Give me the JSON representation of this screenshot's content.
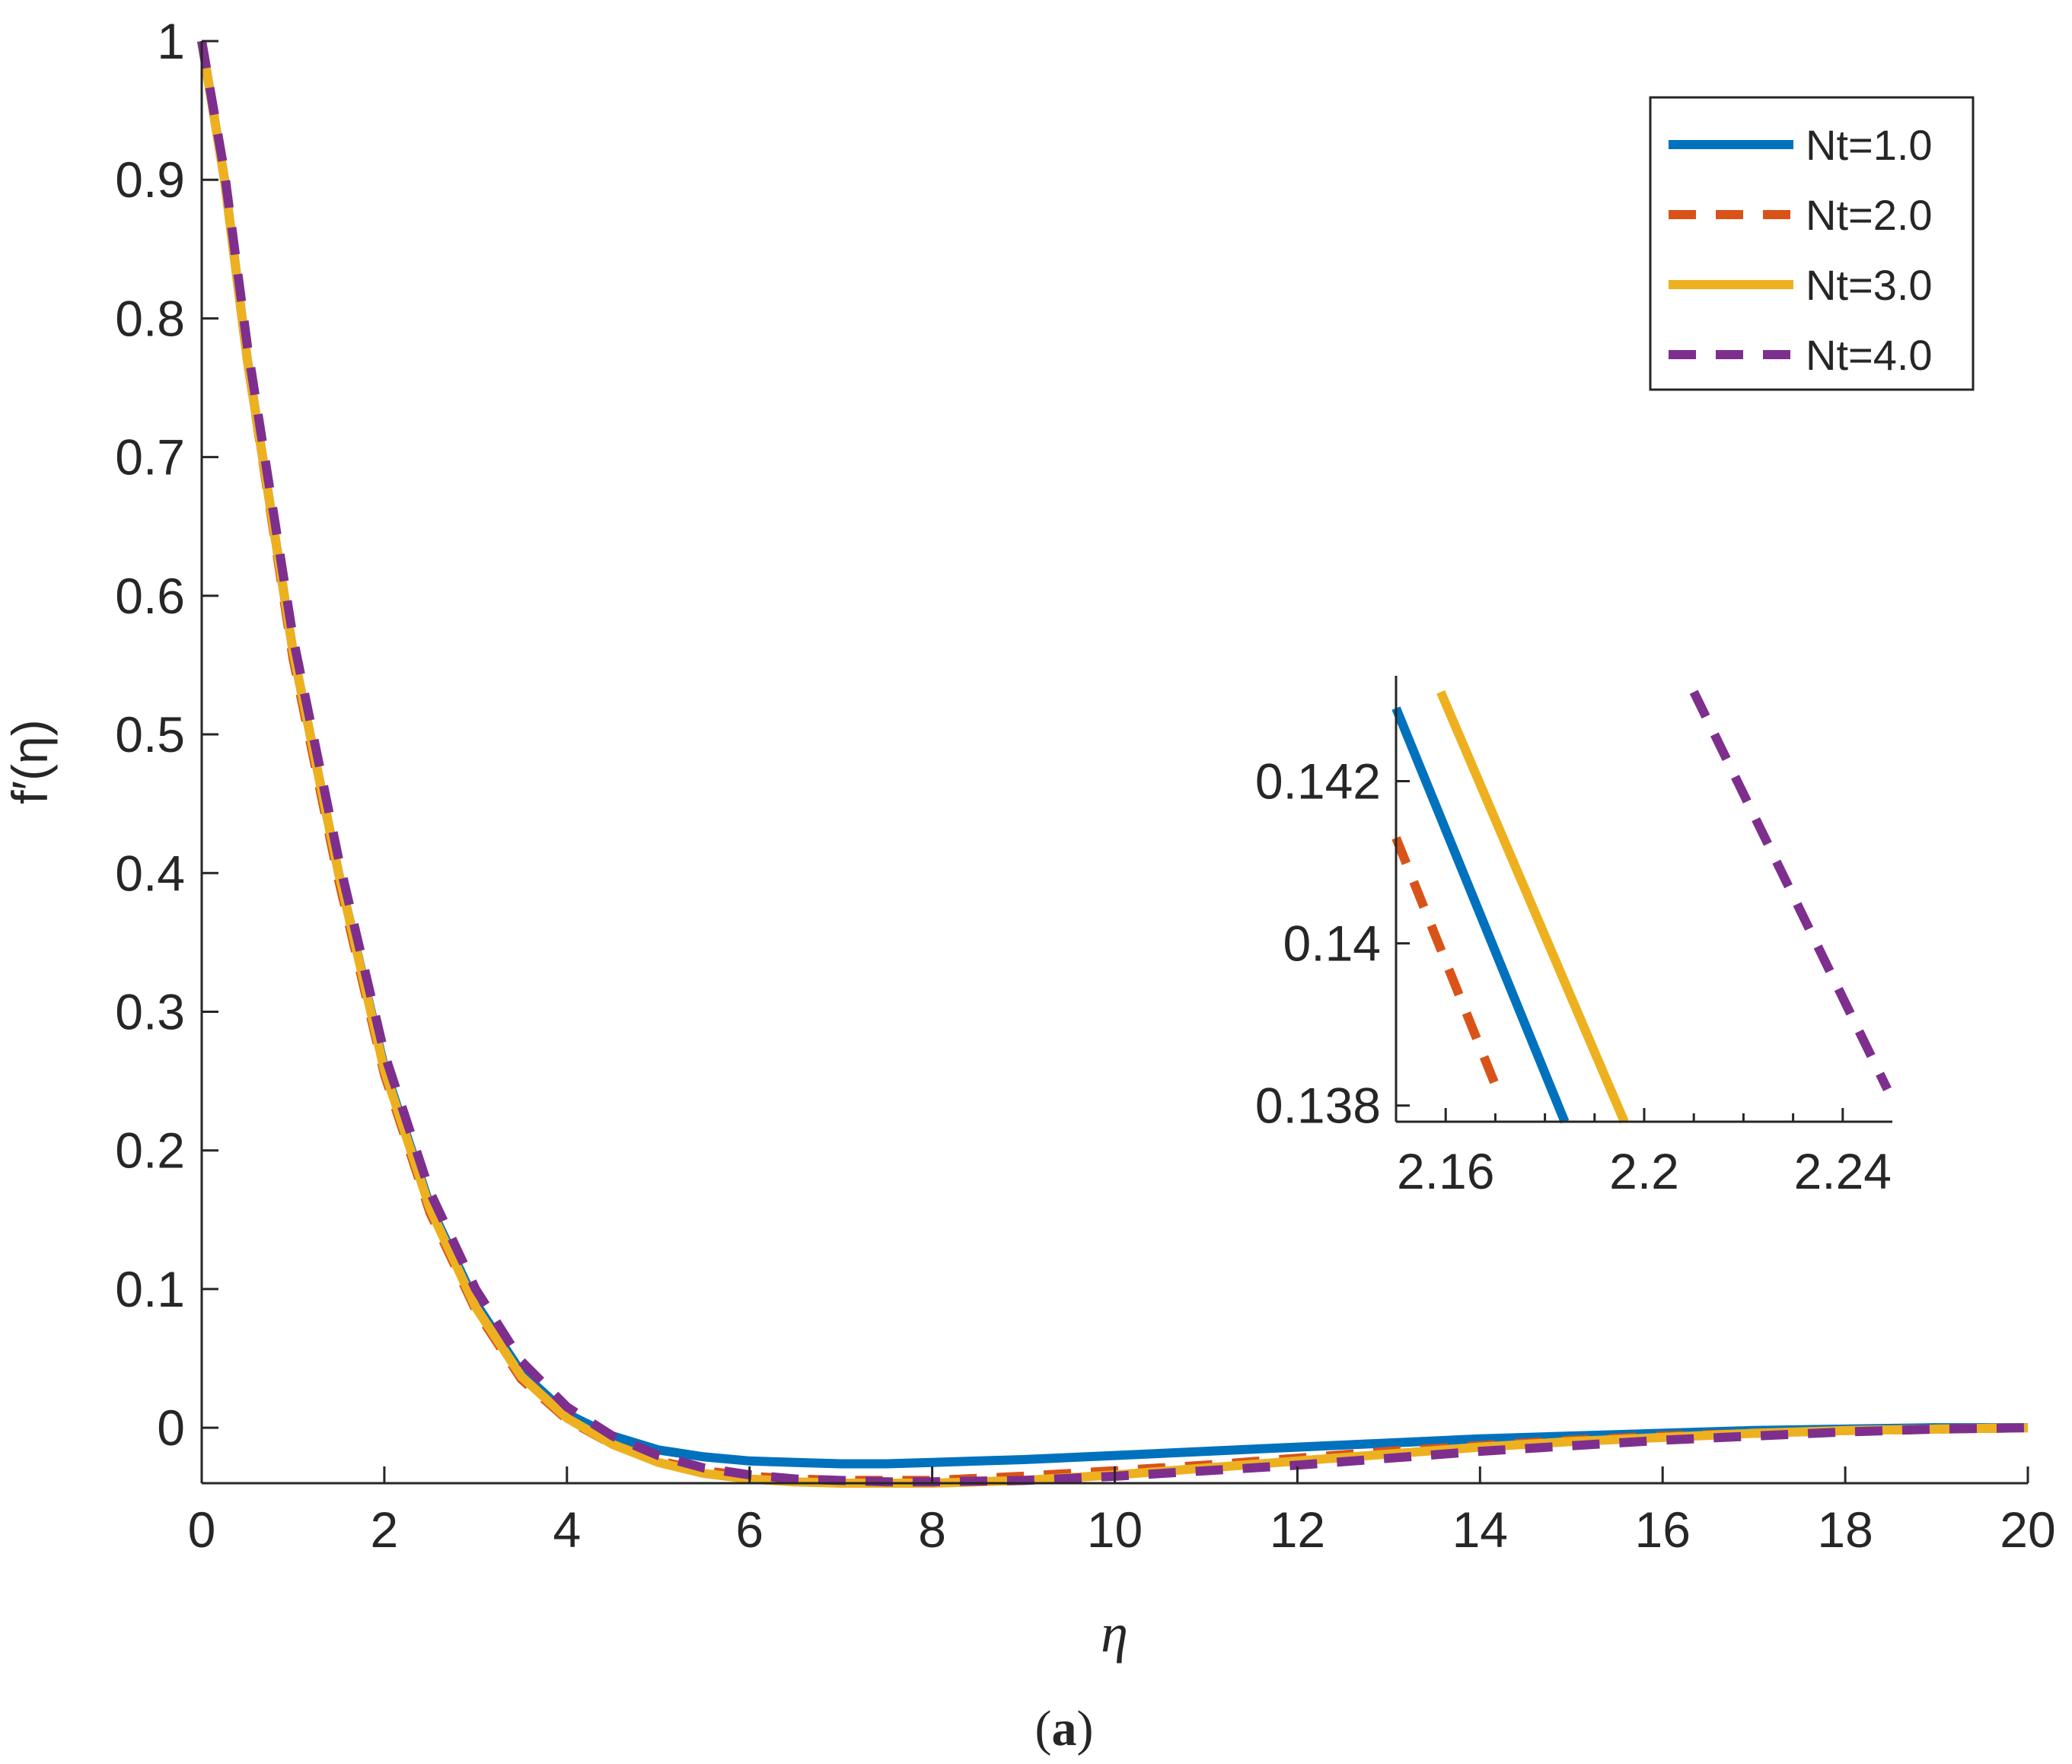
{
  "chart_data": [
    {
      "type": "line",
      "name": "main",
      "title": "",
      "xlabel": "η",
      "ylabel": "f′(η)",
      "xlim": [
        0,
        20
      ],
      "ylim": [
        -0.04,
        1.0
      ],
      "xticks": [
        0,
        2,
        4,
        6,
        8,
        10,
        12,
        14,
        16,
        18,
        20
      ],
      "yticks": [
        0,
        0.1,
        0.2,
        0.3,
        0.4,
        0.5,
        0.6,
        0.7,
        0.8,
        0.9,
        1
      ],
      "xtick_labels": [
        "0",
        "2",
        "4",
        "6",
        "8",
        "10",
        "12",
        "14",
        "16",
        "18",
        "20"
      ],
      "ytick_labels": [
        "0",
        "0.1",
        "0.2",
        "0.3",
        "0.4",
        "0.5",
        "0.6",
        "0.7",
        "0.8",
        "0.9",
        "1"
      ],
      "grid": false,
      "legend_position": "top-right",
      "series": [
        {
          "name": "Nt=1.0",
          "color": "#0072BD",
          "style": "solid",
          "x": [
            0,
            0.25,
            0.5,
            1,
            1.5,
            2,
            2.5,
            3,
            3.5,
            4,
            4.5,
            5,
            5.5,
            6,
            6.5,
            7,
            7.5,
            8,
            9,
            10,
            11,
            12,
            13,
            14,
            15,
            16,
            17,
            18,
            19,
            20
          ],
          "y": [
            1.0,
            0.9,
            0.77,
            0.56,
            0.4,
            0.26,
            0.16,
            0.09,
            0.04,
            0.01,
            -0.006,
            -0.016,
            -0.021,
            -0.024,
            -0.025,
            -0.026,
            -0.026,
            -0.025,
            -0.023,
            -0.02,
            -0.017,
            -0.014,
            -0.011,
            -0.008,
            -0.006,
            -0.004,
            -0.002,
            -0.001,
            0.0,
            0.0
          ]
        },
        {
          "name": "Nt=2.0",
          "color": "#D95319",
          "style": "dashed",
          "x": [
            0,
            0.25,
            0.5,
            1,
            1.5,
            2,
            2.5,
            3,
            3.5,
            4,
            4.5,
            5,
            5.5,
            6,
            6.5,
            7,
            7.5,
            8,
            9,
            10,
            11,
            12,
            13,
            14,
            15,
            16,
            17,
            18,
            19,
            20
          ],
          "y": [
            1.0,
            0.9,
            0.77,
            0.555,
            0.395,
            0.255,
            0.155,
            0.085,
            0.035,
            0.006,
            -0.012,
            -0.024,
            -0.031,
            -0.035,
            -0.037,
            -0.038,
            -0.038,
            -0.038,
            -0.035,
            -0.031,
            -0.027,
            -0.022,
            -0.017,
            -0.013,
            -0.009,
            -0.006,
            -0.004,
            -0.002,
            -0.001,
            0.0
          ]
        },
        {
          "name": "Nt=3.0",
          "color": "#EDB120",
          "style": "solid",
          "x": [
            0,
            0.25,
            0.5,
            1,
            1.5,
            2,
            2.5,
            3,
            3.5,
            4,
            4.5,
            5,
            5.5,
            6,
            6.5,
            7,
            7.5,
            8,
            9,
            10,
            11,
            12,
            13,
            14,
            15,
            16,
            17,
            18,
            19,
            20
          ],
          "y": [
            1.0,
            0.9,
            0.77,
            0.56,
            0.4,
            0.258,
            0.158,
            0.087,
            0.037,
            0.007,
            -0.012,
            -0.025,
            -0.033,
            -0.037,
            -0.039,
            -0.04,
            -0.04,
            -0.04,
            -0.038,
            -0.034,
            -0.029,
            -0.024,
            -0.019,
            -0.014,
            -0.01,
            -0.007,
            -0.004,
            -0.002,
            -0.001,
            0.0
          ]
        },
        {
          "name": "Nt=4.0",
          "color": "#7E2F8E",
          "style": "dashed",
          "x": [
            0,
            0.25,
            0.5,
            1,
            1.5,
            2,
            2.5,
            3,
            3.5,
            4,
            4.5,
            5,
            5.5,
            6,
            6.5,
            7,
            7.5,
            8,
            9,
            10,
            11,
            12,
            13,
            14,
            15,
            16,
            17,
            18,
            19,
            20
          ],
          "y": [
            1.0,
            0.905,
            0.78,
            0.57,
            0.41,
            0.27,
            0.17,
            0.1,
            0.048,
            0.015,
            -0.006,
            -0.02,
            -0.029,
            -0.034,
            -0.037,
            -0.038,
            -0.039,
            -0.039,
            -0.038,
            -0.035,
            -0.031,
            -0.027,
            -0.022,
            -0.017,
            -0.013,
            -0.009,
            -0.006,
            -0.003,
            -0.001,
            0.0
          ]
        }
      ]
    },
    {
      "type": "line",
      "name": "inset",
      "title": "",
      "xlabel": "",
      "ylabel": "",
      "xlim": [
        2.15,
        2.25
      ],
      "ylim": [
        0.1378,
        0.1433
      ],
      "xticks": [
        2.16,
        2.2,
        2.24
      ],
      "yticks": [
        0.138,
        0.14,
        0.142
      ],
      "xtick_labels": [
        "2.16",
        "2.2",
        "2.24"
      ],
      "ytick_labels": [
        "0.138",
        "0.14",
        "0.142"
      ],
      "grid": false,
      "series": [
        {
          "name": "Nt=1.0",
          "color": "#0072BD",
          "style": "solid",
          "x": [
            2.15,
            2.184
          ],
          "y": [
            0.1429,
            0.1378
          ]
        },
        {
          "name": "Nt=2.0",
          "color": "#D95319",
          "style": "dashed",
          "x": [
            2.15,
            2.171
          ],
          "y": [
            0.1413,
            0.1381
          ]
        },
        {
          "name": "Nt=3.0",
          "color": "#EDB120",
          "style": "solid",
          "x": [
            2.159,
            2.196
          ],
          "y": [
            0.1431,
            0.1378
          ]
        },
        {
          "name": "Nt=4.0",
          "color": "#7E2F8E",
          "style": "dashed",
          "x": [
            2.21,
            2.249
          ],
          "y": [
            0.1431,
            0.1382
          ]
        }
      ]
    }
  ],
  "legend": {
    "entries": [
      "Nt=1.0",
      "Nt=2.0",
      "Nt=3.0",
      "Nt=4.0"
    ]
  },
  "caption": {
    "open": "(",
    "letter": "a",
    "close": ")"
  }
}
